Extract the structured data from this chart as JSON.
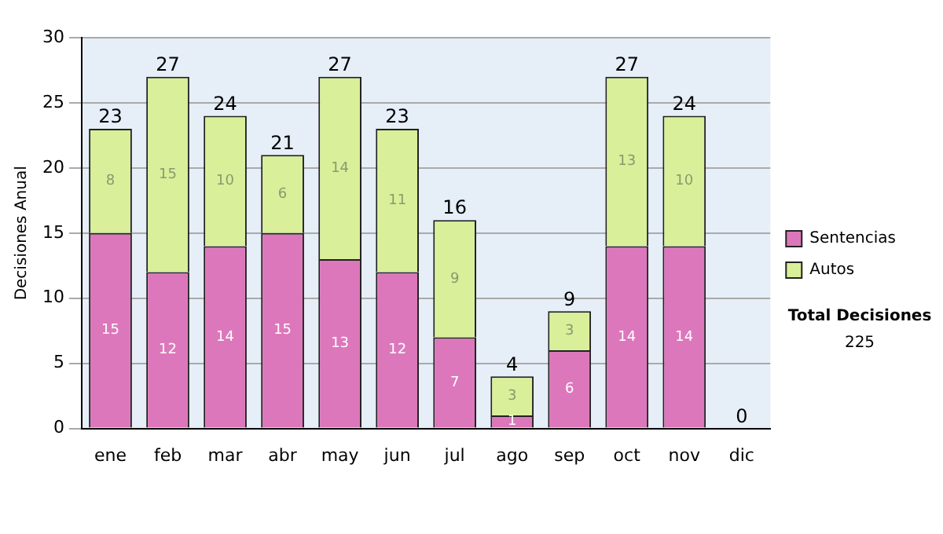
{
  "chart_data": {
    "type": "bar",
    "stacked": true,
    "ylabel": "Decisiones Anual",
    "categories": [
      "ene",
      "feb",
      "mar",
      "abr",
      "may",
      "jun",
      "jul",
      "ago",
      "sep",
      "oct",
      "nov",
      "dic"
    ],
    "series": [
      {
        "name": "Sentencias",
        "color": "#dd77bb",
        "values": [
          15,
          12,
          14,
          15,
          13,
          12,
          7,
          1,
          6,
          14,
          14,
          0
        ],
        "value_labels": [
          "15",
          "12",
          "14",
          "15",
          "13",
          "12",
          "7",
          "1",
          "6",
          "14",
          "14",
          null
        ]
      },
      {
        "name": "Autos",
        "color": "#d9ef99",
        "values": [
          8,
          15,
          10,
          6,
          14,
          11,
          9,
          3,
          3,
          13,
          10,
          0
        ],
        "value_labels": [
          "8",
          "15",
          "10",
          "6",
          "14",
          "11",
          "9",
          "3",
          "3",
          "13",
          "10",
          null
        ]
      }
    ],
    "totals": [
      "23",
      "27",
      "24",
      "21",
      "27",
      "23",
      "16",
      "4",
      "9",
      "27",
      "24",
      "0"
    ],
    "ylim": [
      0,
      30
    ],
    "yticks": [
      0,
      5,
      10,
      15,
      20,
      25,
      30
    ],
    "grid": "y",
    "legend": "right",
    "annotations": [
      "Total Decisiones",
      "225"
    ]
  }
}
